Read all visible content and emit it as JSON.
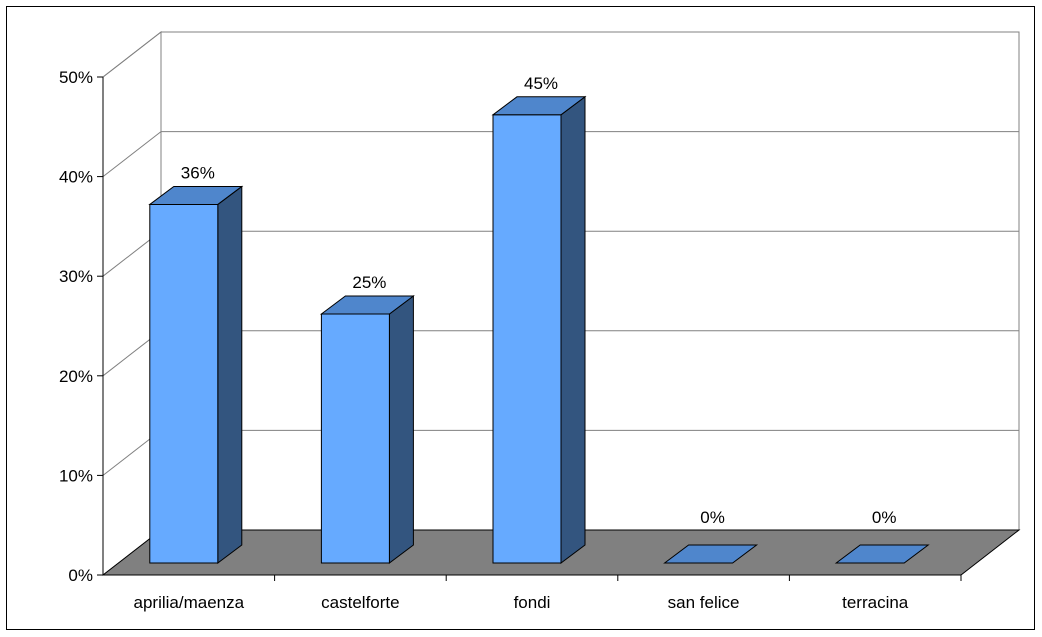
{
  "chart_data": {
    "type": "bar",
    "title": "",
    "xlabel": "",
    "ylabel": "",
    "categories": [
      "aprilia/maenza",
      "castelforte",
      "fondi",
      "san felice",
      "terracina"
    ],
    "values": [
      36,
      25,
      45,
      0,
      0
    ],
    "value_labels": [
      "36%",
      "25%",
      "45%",
      "0%",
      "0%"
    ],
    "ylim": [
      0,
      50
    ],
    "yticks": [
      0,
      10,
      20,
      30,
      40,
      50
    ],
    "ytick_labels": [
      "0%",
      "10%",
      "20%",
      "30%",
      "40%",
      "50%"
    ],
    "grid": true,
    "legend": "none",
    "style": "3d-column",
    "colors": {
      "bar_front": "#66aaff",
      "bar_top": "#4f86cc",
      "bar_side": "#33557f",
      "floor": "#808080",
      "back_wall": "#ffffff",
      "grid": "#808080"
    }
  }
}
